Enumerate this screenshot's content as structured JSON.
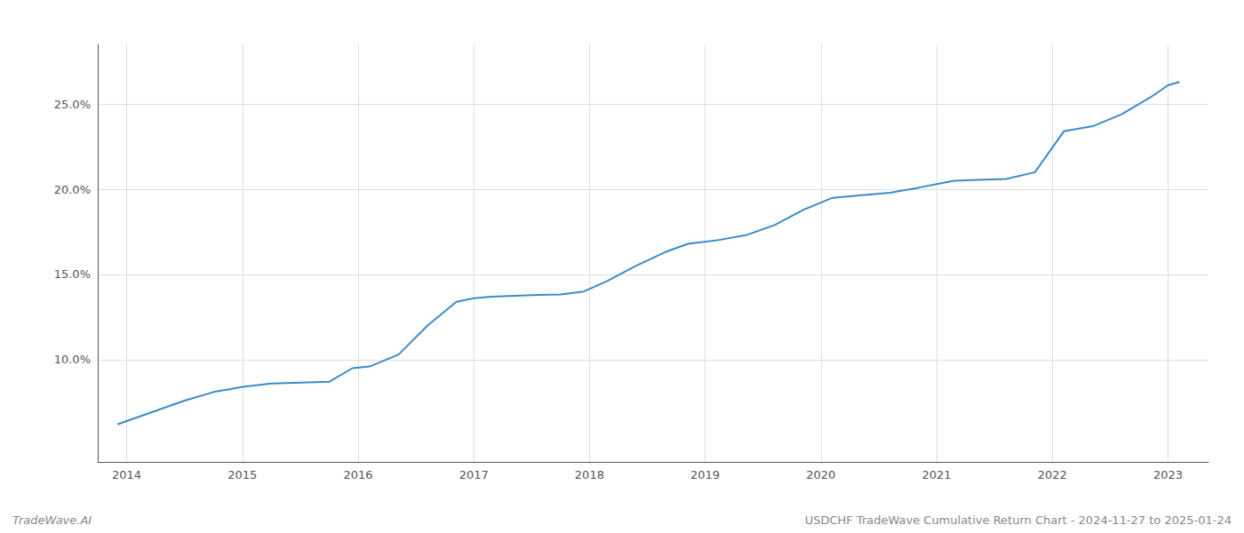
{
  "chart_data": {
    "type": "line",
    "annotations": [
      "TradeWave.AI",
      "USDCHF TradeWave Cumulative Return Chart - 2024-11-27 to 2025-01-24"
    ],
    "x": [
      2013.92,
      2014.0,
      2014.25,
      2014.5,
      2014.75,
      2015.0,
      2015.25,
      2015.5,
      2015.75,
      2015.95,
      2016.1,
      2016.35,
      2016.6,
      2016.85,
      2017.0,
      2017.15,
      2017.35,
      2017.55,
      2017.75,
      2017.95,
      2018.15,
      2018.4,
      2018.65,
      2018.85,
      2019.1,
      2019.35,
      2019.6,
      2019.85,
      2020.1,
      2020.35,
      2020.6,
      2020.85,
      2021.0,
      2021.15,
      2021.35,
      2021.6,
      2021.85,
      2022.1,
      2022.35,
      2022.6,
      2022.85,
      2023.0,
      2023.1
    ],
    "values": [
      6.2,
      6.4,
      7.0,
      7.6,
      8.1,
      8.4,
      8.6,
      8.65,
      8.7,
      9.5,
      9.6,
      10.3,
      12.0,
      13.4,
      13.6,
      13.7,
      13.75,
      13.8,
      13.82,
      14.0,
      14.6,
      15.5,
      16.3,
      16.8,
      17.0,
      17.3,
      17.9,
      18.8,
      19.5,
      19.65,
      19.8,
      20.1,
      20.3,
      20.5,
      20.55,
      20.6,
      21.0,
      23.4,
      23.7,
      24.4,
      25.4,
      26.1,
      26.3
    ],
    "color": "#3a8bc8",
    "xlim": [
      2013.75,
      2023.35
    ],
    "xticks": [
      2014,
      2015,
      2016,
      2017,
      2018,
      2019,
      2020,
      2021,
      2022,
      2023
    ],
    "ylim": [
      4.0,
      28.5
    ],
    "yticks": [
      {
        "value": 10.0,
        "label": "10.0%"
      },
      {
        "value": 15.0,
        "label": "15.0%"
      },
      {
        "value": 20.0,
        "label": "20.0%"
      },
      {
        "value": 25.0,
        "label": "25.0%"
      }
    ],
    "grid": true
  }
}
